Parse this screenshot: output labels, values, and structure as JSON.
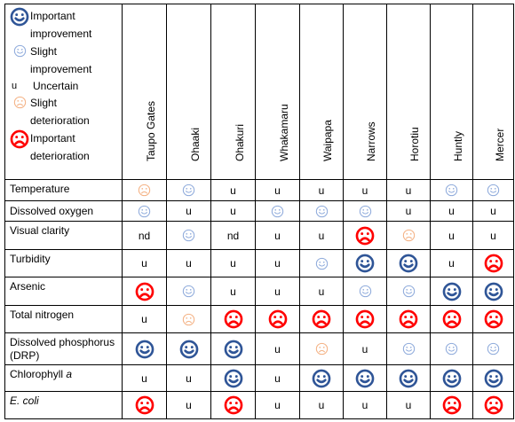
{
  "colors": {
    "improve_important": "#2f5597",
    "improve_slight": "#8eaadb",
    "deteriorate_slight": "#f4b183",
    "deteriorate_important": "#ff0000"
  },
  "legend": [
    {
      "code": "II",
      "icon": "large-smile-icon",
      "label": "Important improvement"
    },
    {
      "code": "SI",
      "icon": "small-smile-icon",
      "label": "Slight improvement"
    },
    {
      "code": "u",
      "icon": "",
      "label": "Uncertain"
    },
    {
      "code": "SD",
      "icon": "small-frown-icon",
      "label": "Slight deterioration"
    },
    {
      "code": "ID",
      "icon": "large-frown-icon",
      "label": "Important deterioration"
    }
  ],
  "sites": [
    "Taupo Gates",
    "Ohaaki",
    "Ohakuri",
    "Whakamaru",
    "Waipapa",
    "Narrows",
    "Horotiu",
    "Huntly",
    "Mercer"
  ],
  "rows": [
    {
      "label": "Temperature",
      "italic": false,
      "cells": [
        "SD",
        "SI",
        "u",
        "u",
        "u",
        "u",
        "u",
        "SI",
        "SI"
      ]
    },
    {
      "label": "Dissolved oxygen",
      "italic": false,
      "cells": [
        "SI",
        "u",
        "u",
        "SI",
        "SI",
        "SI",
        "u",
        "u",
        "u"
      ]
    },
    {
      "label": "Visual clarity",
      "italic": false,
      "cells": [
        "nd",
        "SI",
        "nd",
        "u",
        "u",
        "ID",
        "SD",
        "u",
        "u"
      ]
    },
    {
      "label": "Turbidity",
      "italic": false,
      "cells": [
        "u",
        "u",
        "u",
        "u",
        "SI",
        "II",
        "II",
        "u",
        "ID"
      ]
    },
    {
      "label": "Arsenic",
      "italic": false,
      "cells": [
        "ID",
        "SI",
        "u",
        "u",
        "u",
        "SI",
        "SI",
        "II",
        "II"
      ]
    },
    {
      "label": "Total nitrogen",
      "italic": false,
      "cells": [
        "u",
        "SD",
        "ID",
        "ID",
        "ID",
        "ID",
        "ID",
        "ID",
        "ID"
      ]
    },
    {
      "label": "Dissolved phosphorus (DRP)",
      "italic": false,
      "cells": [
        "II",
        "II",
        "II",
        "u",
        "SD",
        "u",
        "SI",
        "SI",
        "SI"
      ]
    },
    {
      "label": "Chlorophyll a",
      "italic": false,
      "cells": [
        "u",
        "u",
        "II",
        "u",
        "II",
        "II",
        "II",
        "II",
        "II"
      ]
    },
    {
      "label": "E. coli",
      "italic": true,
      "cells": [
        "ID",
        "u",
        "ID",
        "u",
        "u",
        "u",
        "u",
        "ID",
        "ID"
      ]
    }
  ]
}
